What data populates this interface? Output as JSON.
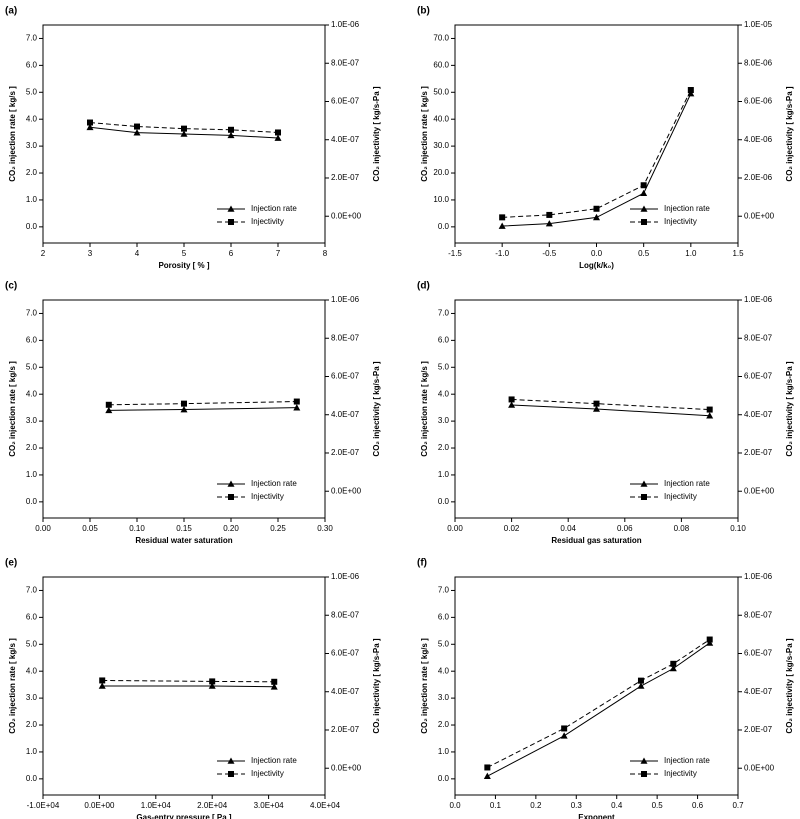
{
  "chart_data": [
    {
      "type": "line",
      "title": "(a)",
      "x_label": "Porosity [ % ]",
      "y_label": "CO₂ injection rate [ kg/s ]",
      "y2_label": "CO₂ injectivity [ kg/s-Pa ]",
      "x": [
        3,
        4,
        5,
        6,
        7
      ],
      "series": [
        {
          "name": "Injection rate",
          "color": "#000000",
          "marker": "triangle",
          "linestyle": "solid",
          "values": [
            3.7,
            3.5,
            3.45,
            3.4,
            3.3
          ]
        },
        {
          "name": "Injectivity",
          "color": "#000000",
          "marker": "square",
          "linestyle": "dashed",
          "axis": "y2",
          "values": [
            4.9e-07,
            4.69e-07,
            4.58e-07,
            4.52e-07,
            4.38e-07
          ]
        }
      ],
      "xlim": [
        2,
        8
      ],
      "xticks": [
        2,
        3,
        4,
        5,
        6,
        7,
        8
      ],
      "ylim": [
        -0.6,
        7.5
      ],
      "yticks": [
        {
          "value": 0,
          "label": "0.0"
        },
        {
          "value": 1,
          "label": "1.0"
        },
        {
          "value": 2,
          "label": "2.0"
        },
        {
          "value": 3,
          "label": "3.0"
        },
        {
          "value": 4,
          "label": "4.0"
        },
        {
          "value": 5,
          "label": "5.0"
        },
        {
          "value": 6,
          "label": "6.0"
        },
        {
          "value": 7,
          "label": "7.0"
        }
      ],
      "y2lim": [
        -1.4e-07,
        1e-06
      ],
      "y2ticks": [
        {
          "value": 0,
          "label": "0.0E+00"
        },
        {
          "value": 2e-07,
          "label": "2.0E-07"
        },
        {
          "value": 4e-07,
          "label": "4.0E-07"
        },
        {
          "value": 6e-07,
          "label": "6.0E-07"
        },
        {
          "value": 8e-07,
          "label": "8.0E-07"
        },
        {
          "value": 1e-06,
          "label": "1.0E-06"
        }
      ],
      "legend": "lower right"
    },
    {
      "type": "line",
      "title": "(b)",
      "x_label": "Log(k/k₀)",
      "y_label": "CO₂ injection rate [ kg/s ]",
      "y2_label": "CO₂ injectivity [ kg/s-Pa ]",
      "x": [
        -1.0,
        -0.5,
        0.0,
        0.5,
        1.0
      ],
      "series": [
        {
          "name": "Injection rate",
          "color": "#000000",
          "marker": "triangle",
          "linestyle": "solid",
          "values": [
            0.3,
            1.2,
            3.5,
            12.5,
            49.5
          ]
        },
        {
          "name": "Injectivity",
          "color": "#000000",
          "marker": "square",
          "linestyle": "dashed",
          "axis": "y2",
          "values": [
            -5.9e-08,
            6.8e-08,
            3.9e-07,
            1.62e-06,
            6.6e-06
          ]
        }
      ],
      "xlim": [
        -1.5,
        1.5
      ],
      "xticks": [
        -1.5,
        {
          "value": -1,
          "label": "-1.0"
        },
        -0.5,
        {
          "value": 0,
          "label": "0.0"
        },
        0.5,
        {
          "value": 1,
          "label": "1.0"
        },
        1.5
      ],
      "ylim": [
        -6,
        75
      ],
      "yticks": [
        {
          "value": 0,
          "label": "0.0"
        },
        {
          "value": 10,
          "label": "10.0"
        },
        {
          "value": 20,
          "label": "20.0"
        },
        {
          "value": 30,
          "label": "30.0"
        },
        {
          "value": 40,
          "label": "40.0"
        },
        {
          "value": 50,
          "label": "50.0"
        },
        {
          "value": 60,
          "label": "60.0"
        },
        {
          "value": 70,
          "label": "70.0"
        }
      ],
      "y2lim": [
        -1.4e-06,
        1e-05
      ],
      "y2ticks": [
        {
          "value": 0,
          "label": "0.0E+00"
        },
        {
          "value": 2e-06,
          "label": "2.0E-06"
        },
        {
          "value": 4e-06,
          "label": "4.0E-06"
        },
        {
          "value": 6e-06,
          "label": "6.0E-06"
        },
        {
          "value": 8e-06,
          "label": "8.0E-06"
        },
        {
          "value": 1e-05,
          "label": "1.0E-05"
        }
      ],
      "legend": "lower right"
    },
    {
      "type": "line",
      "title": "(c)",
      "x_label": "Residual water saturation",
      "y_label": "CO₂ injection rate [ kg/s ]",
      "y2_label": "CO₂ injectivity [ kg/s-Pa ]",
      "x": [
        0.07,
        0.15,
        0.27
      ],
      "series": [
        {
          "name": "Injection rate",
          "color": "#000000",
          "marker": "triangle",
          "linestyle": "solid",
          "values": [
            3.4,
            3.43,
            3.5
          ]
        },
        {
          "name": "Injectivity",
          "color": "#000000",
          "marker": "square",
          "linestyle": "dashed",
          "axis": "y2",
          "values": [
            4.52e-07,
            4.58e-07,
            4.69e-07
          ]
        }
      ],
      "xlim": [
        0,
        0.3
      ],
      "xticks": [
        {
          "value": 0,
          "label": "0.00"
        },
        {
          "value": 0.05,
          "label": "0.05"
        },
        {
          "value": 0.1,
          "label": "0.10"
        },
        {
          "value": 0.15,
          "label": "0.15"
        },
        {
          "value": 0.2,
          "label": "0.20"
        },
        {
          "value": 0.25,
          "label": "0.25"
        },
        {
          "value": 0.3,
          "label": "0.30"
        }
      ],
      "ylim": [
        -0.6,
        7.5
      ],
      "yticks": [
        {
          "value": 0,
          "label": "0.0"
        },
        {
          "value": 1,
          "label": "1.0"
        },
        {
          "value": 2,
          "label": "2.0"
        },
        {
          "value": 3,
          "label": "3.0"
        },
        {
          "value": 4,
          "label": "4.0"
        },
        {
          "value": 5,
          "label": "5.0"
        },
        {
          "value": 6,
          "label": "6.0"
        },
        {
          "value": 7,
          "label": "7.0"
        }
      ],
      "y2lim": [
        -1.4e-07,
        1e-06
      ],
      "y2ticks": [
        {
          "value": 0,
          "label": "0.0E+00"
        },
        {
          "value": 2e-07,
          "label": "2.0E-07"
        },
        {
          "value": 4e-07,
          "label": "4.0E-07"
        },
        {
          "value": 6e-07,
          "label": "6.0E-07"
        },
        {
          "value": 8e-07,
          "label": "8.0E-07"
        },
        {
          "value": 1e-06,
          "label": "1.0E-06"
        }
      ],
      "legend": "lower right"
    },
    {
      "type": "line",
      "title": "(d)",
      "x_label": "Residual gas saturation",
      "y_label": "CO₂ injection rate [ kg/s ]",
      "y2_label": "CO₂ injectivity [ kg/s-Pa ]",
      "x": [
        0.02,
        0.05,
        0.09
      ],
      "series": [
        {
          "name": "Injection rate",
          "color": "#000000",
          "marker": "triangle",
          "linestyle": "solid",
          "values": [
            3.6,
            3.45,
            3.2
          ]
        },
        {
          "name": "Injectivity",
          "color": "#000000",
          "marker": "square",
          "linestyle": "dashed",
          "axis": "y2",
          "values": [
            4.8e-07,
            4.58e-07,
            4.27e-07
          ]
        }
      ],
      "xlim": [
        0,
        0.1
      ],
      "xticks": [
        {
          "value": 0,
          "label": "0.00"
        },
        {
          "value": 0.02,
          "label": "0.02"
        },
        {
          "value": 0.04,
          "label": "0.04"
        },
        {
          "value": 0.06,
          "label": "0.06"
        },
        {
          "value": 0.08,
          "label": "0.08"
        },
        {
          "value": 0.1,
          "label": "0.10"
        }
      ],
      "ylim": [
        -0.6,
        7.5
      ],
      "yticks": [
        {
          "value": 0,
          "label": "0.0"
        },
        {
          "value": 1,
          "label": "1.0"
        },
        {
          "value": 2,
          "label": "2.0"
        },
        {
          "value": 3,
          "label": "3.0"
        },
        {
          "value": 4,
          "label": "4.0"
        },
        {
          "value": 5,
          "label": "5.0"
        },
        {
          "value": 6,
          "label": "6.0"
        },
        {
          "value": 7,
          "label": "7.0"
        }
      ],
      "y2lim": [
        -1.4e-07,
        1e-06
      ],
      "y2ticks": [
        {
          "value": 0,
          "label": "0.0E+00"
        },
        {
          "value": 2e-07,
          "label": "2.0E-07"
        },
        {
          "value": 4e-07,
          "label": "4.0E-07"
        },
        {
          "value": 6e-07,
          "label": "6.0E-07"
        },
        {
          "value": 8e-07,
          "label": "8.0E-07"
        },
        {
          "value": 1e-06,
          "label": "1.0E-06"
        }
      ],
      "legend": "lower right"
    },
    {
      "type": "line",
      "title": "(e)",
      "x_label": "Gas-entry pressure [ Pa ]",
      "y_label": "CO₂ injection rate [ kg/s ]",
      "y2_label": "CO₂ injectivity [ kg/s-Pa ]",
      "x": [
        500,
        20000,
        31000
      ],
      "series": [
        {
          "name": "Injection rate",
          "color": "#000000",
          "marker": "triangle",
          "linestyle": "solid",
          "values": [
            3.45,
            3.45,
            3.42
          ]
        },
        {
          "name": "Injectivity",
          "color": "#000000",
          "marker": "square",
          "linestyle": "dashed",
          "axis": "y2",
          "values": [
            4.59e-07,
            4.54e-07,
            4.52e-07
          ]
        }
      ],
      "xlim": [
        -10000,
        40000
      ],
      "xticks": [
        {
          "value": -10000,
          "label": "-1.0E+04"
        },
        {
          "value": 0,
          "label": "0.0E+00"
        },
        {
          "value": 10000,
          "label": "1.0E+04"
        },
        {
          "value": 20000,
          "label": "2.0E+04"
        },
        {
          "value": 30000,
          "label": "3.0E+04"
        },
        {
          "value": 40000,
          "label": "4.0E+04"
        }
      ],
      "ylim": [
        -0.6,
        7.5
      ],
      "yticks": [
        {
          "value": 0,
          "label": "0.0"
        },
        {
          "value": 1,
          "label": "1.0"
        },
        {
          "value": 2,
          "label": "2.0"
        },
        {
          "value": 3,
          "label": "3.0"
        },
        {
          "value": 4,
          "label": "4.0"
        },
        {
          "value": 5,
          "label": "5.0"
        },
        {
          "value": 6,
          "label": "6.0"
        },
        {
          "value": 7,
          "label": "7.0"
        }
      ],
      "y2lim": [
        -1.4e-07,
        1e-06
      ],
      "y2ticks": [
        {
          "value": 0,
          "label": "0.0E+00"
        },
        {
          "value": 2e-07,
          "label": "2.0E-07"
        },
        {
          "value": 4e-07,
          "label": "4.0E-07"
        },
        {
          "value": 6e-07,
          "label": "6.0E-07"
        },
        {
          "value": 8e-07,
          "label": "8.0E-07"
        },
        {
          "value": 1e-06,
          "label": "1.0E-06"
        }
      ],
      "legend": "lower right"
    },
    {
      "type": "line",
      "title": "(f)",
      "x_label": "Exponent",
      "y_label": "CO₂ injection rate [ kg/s ]",
      "y2_label": "CO₂ injectivity [ kg/s-Pa ]",
      "x": [
        0.08,
        0.27,
        0.46,
        0.54,
        0.63
      ],
      "series": [
        {
          "name": "Injection rate",
          "color": "#000000",
          "marker": "triangle",
          "linestyle": "solid",
          "values": [
            0.1,
            1.6,
            3.45,
            4.1,
            5.05
          ]
        },
        {
          "name": "Injectivity",
          "color": "#000000",
          "marker": "square",
          "linestyle": "dashed",
          "axis": "y2",
          "values": [
            4e-09,
            2.08e-07,
            4.58e-07,
            5.46e-07,
            6.73e-07
          ]
        }
      ],
      "xlim": [
        0,
        0.7
      ],
      "xticks": [
        {
          "value": 0,
          "label": "0.0"
        },
        0.1,
        0.2,
        0.3,
        0.4,
        0.5,
        0.6,
        0.7
      ],
      "ylim": [
        -0.6,
        7.5
      ],
      "yticks": [
        {
          "value": 0,
          "label": "0.0"
        },
        {
          "value": 1,
          "label": "1.0"
        },
        {
          "value": 2,
          "label": "2.0"
        },
        {
          "value": 3,
          "label": "3.0"
        },
        {
          "value": 4,
          "label": "4.0"
        },
        {
          "value": 5,
          "label": "5.0"
        },
        {
          "value": 6,
          "label": "6.0"
        },
        {
          "value": 7,
          "label": "7.0"
        }
      ],
      "y2lim": [
        -1.4e-07,
        1e-06
      ],
      "y2ticks": [
        {
          "value": 0,
          "label": "0.0E+00"
        },
        {
          "value": 2e-07,
          "label": "2.0E-07"
        },
        {
          "value": 4e-07,
          "label": "4.0E-07"
        },
        {
          "value": 6e-07,
          "label": "6.0E-07"
        },
        {
          "value": 8e-07,
          "label": "8.0E-07"
        },
        {
          "value": 1e-06,
          "label": "1.0E-06"
        }
      ],
      "legend": "lower right"
    }
  ]
}
